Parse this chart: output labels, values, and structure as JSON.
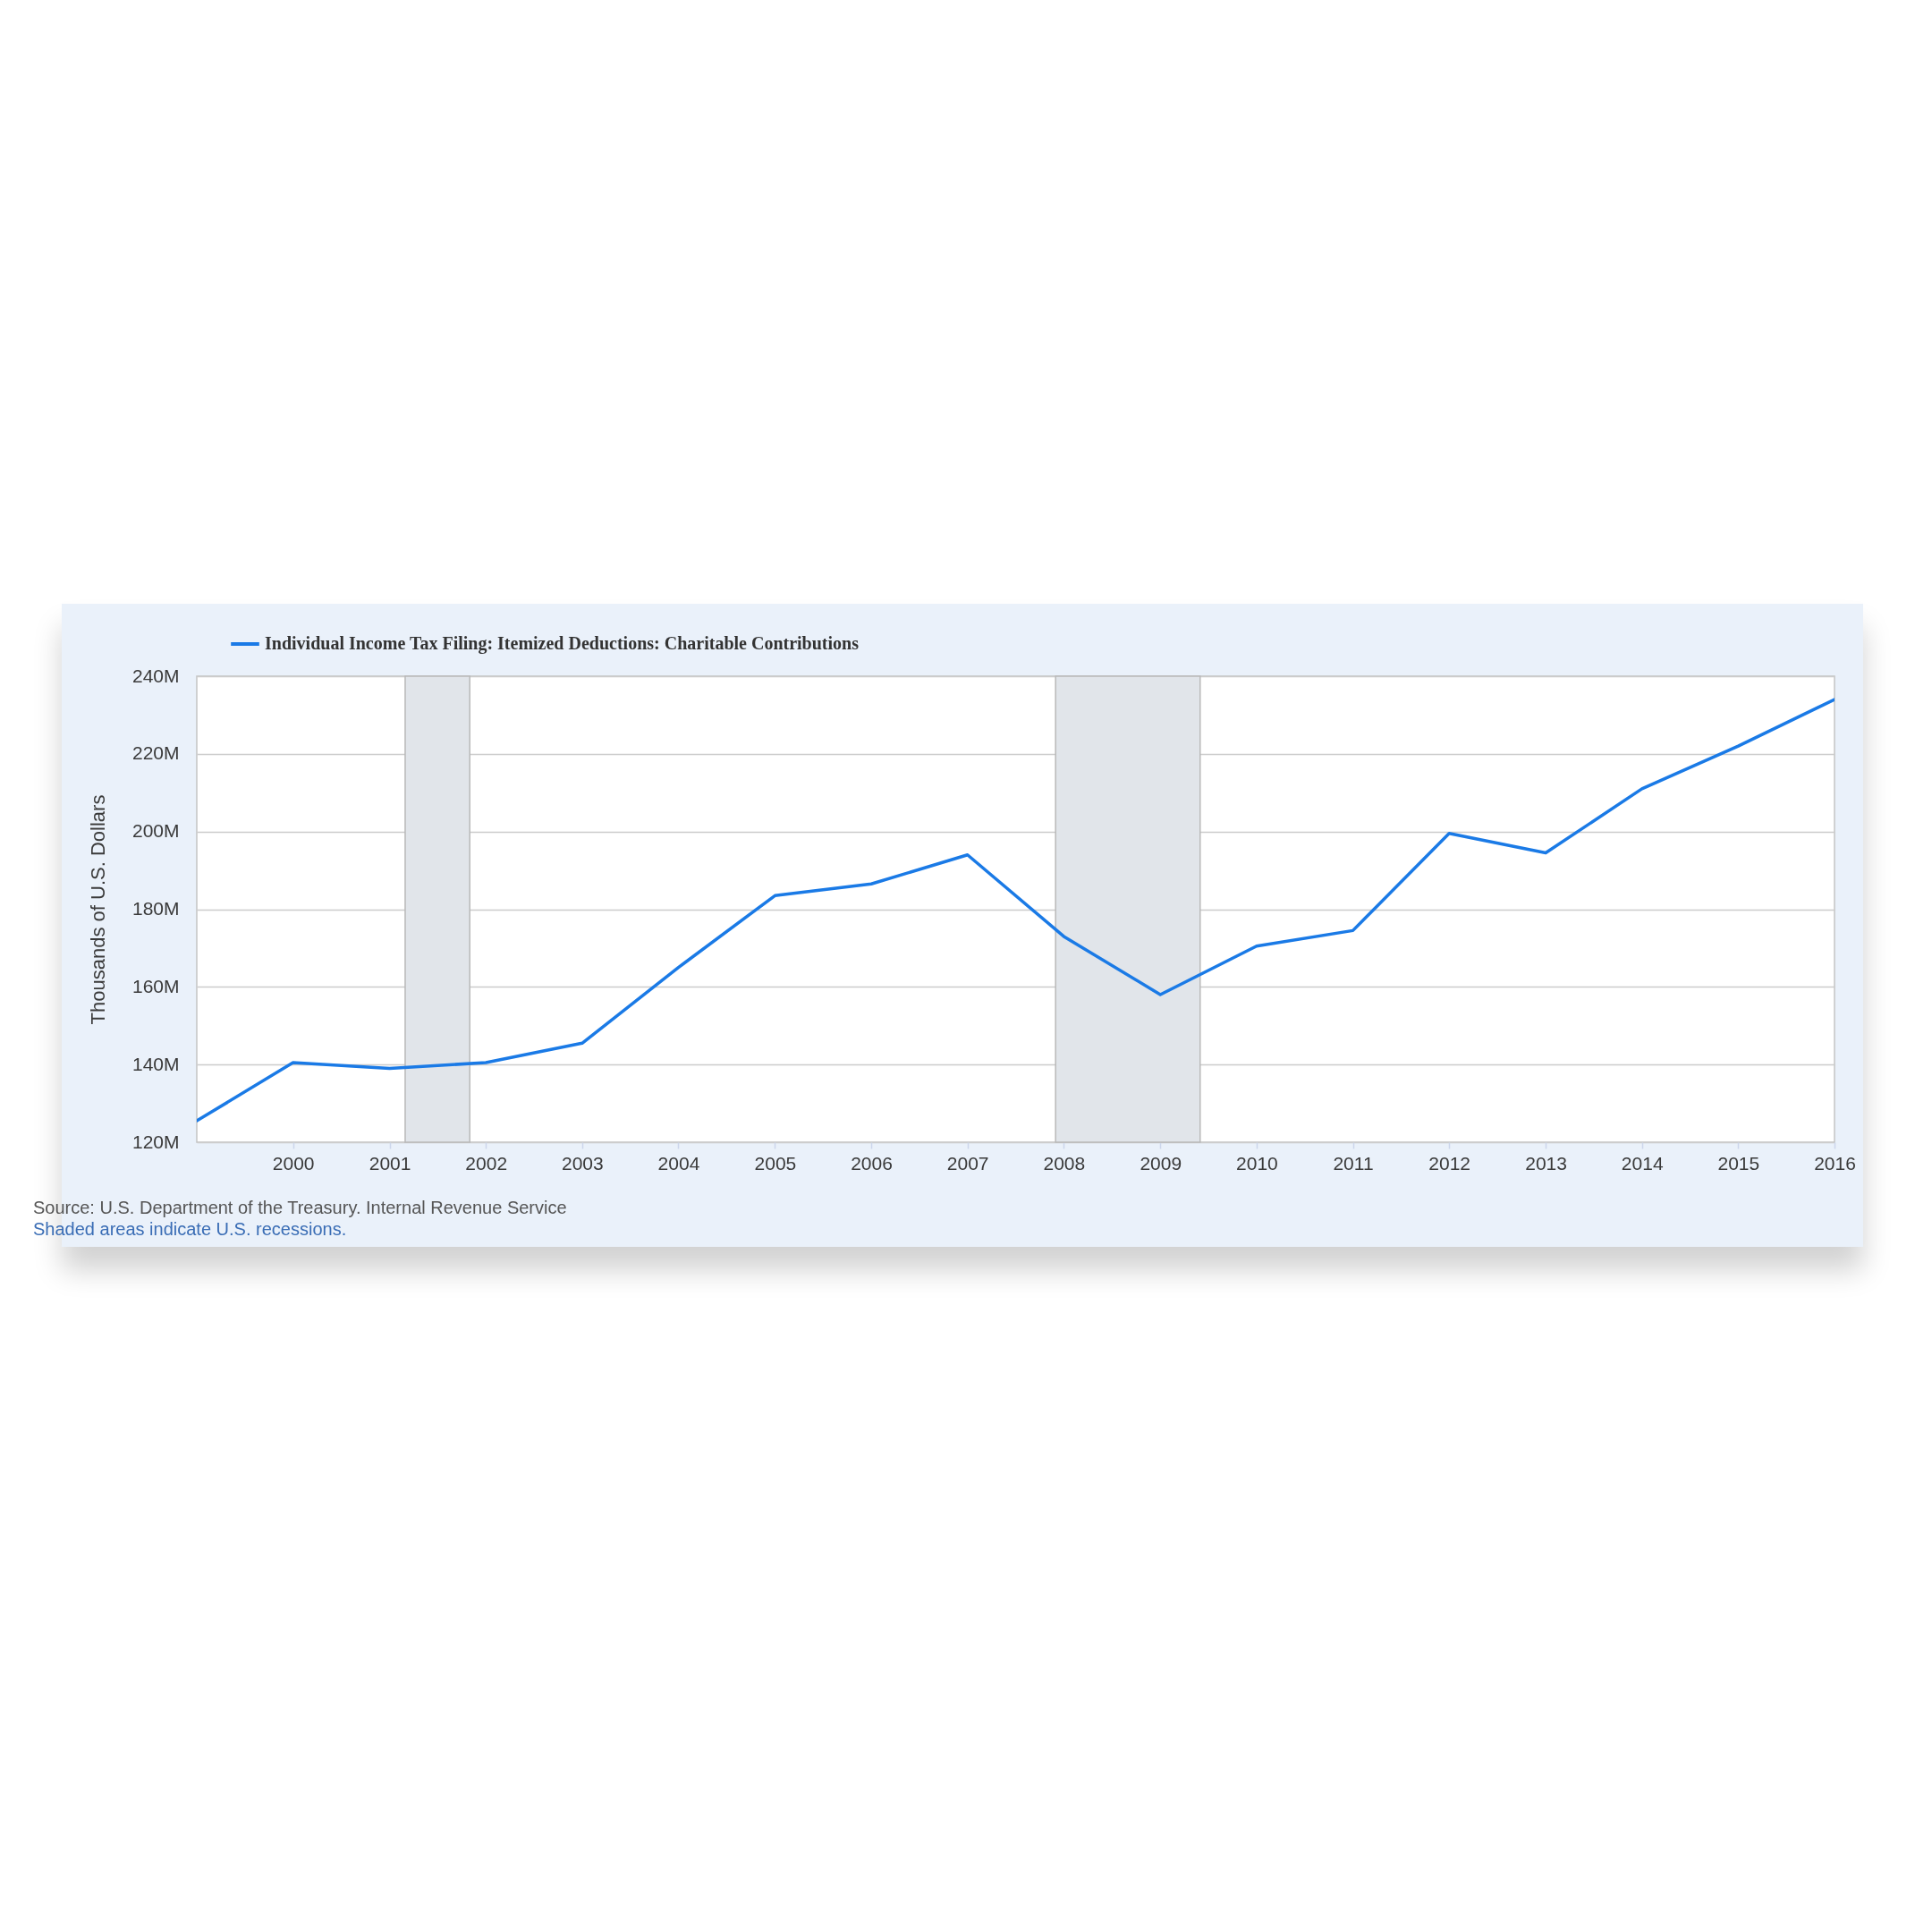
{
  "chart_data": {
    "type": "line",
    "ylabel": "Thousands of U.S. Dollars",
    "annotations": [
      "Source: U.S. Department of the Treasury. Internal Revenue Service",
      "Shaded areas indicate U.S. recessions."
    ],
    "x": [
      "1999",
      "2000",
      "2001",
      "2002",
      "2003",
      "2004",
      "2005",
      "2006",
      "2007",
      "2008",
      "2009",
      "2010",
      "2011",
      "2012",
      "2013",
      "2014",
      "2015",
      "2016"
    ],
    "series": [
      {
        "name": "Individual Income Tax Filing: Itemized Deductions: Charitable Contributions",
        "color": "#1a7ae6",
        "values": [
          125500000,
          140500000,
          139000000,
          140500000,
          145500000,
          165000000,
          183500000,
          186500000,
          194000000,
          173000000,
          158000000,
          170500000,
          174500000,
          199500000,
          194500000,
          211000000,
          222000000,
          234000000
        ]
      }
    ],
    "xlim": [
      "1999",
      "2016"
    ],
    "xticks": [
      "2000",
      "2001",
      "2002",
      "2003",
      "2004",
      "2005",
      "2006",
      "2007",
      "2008",
      "2009",
      "2010",
      "2011",
      "2012",
      "2013",
      "2014",
      "2015",
      "2016"
    ],
    "ylim": [
      120000000,
      240000000
    ],
    "yticks": [
      {
        "value": 120000000,
        "label": "120M"
      },
      {
        "value": 140000000,
        "label": "140M"
      },
      {
        "value": 160000000,
        "label": "160M"
      },
      {
        "value": 180000000,
        "label": "180M"
      },
      {
        "value": 200000000,
        "label": "200M"
      },
      {
        "value": 220000000,
        "label": "220M"
      },
      {
        "value": 240000000,
        "label": "240M"
      }
    ],
    "bands": [
      {
        "axis": "x",
        "from": "2001-03",
        "to": "2001-11",
        "color": "#e1e5ea"
      },
      {
        "axis": "x",
        "from": "2007-12",
        "to": "2009-06",
        "color": "#e1e5ea"
      }
    ],
    "grid": "y",
    "legend": "top left"
  }
}
